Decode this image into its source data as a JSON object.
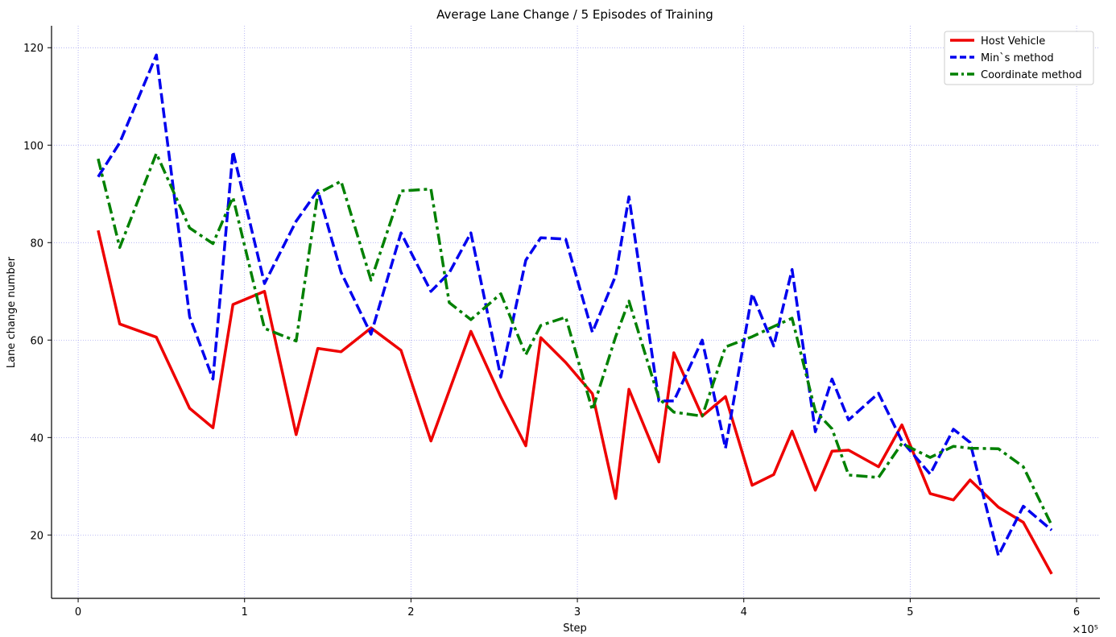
{
  "chart_data": {
    "type": "line",
    "title": "Average Lane Change / 5 Episodes of Training",
    "xlabel": "Step",
    "ylabel": "Lane change number",
    "x_multiplier_label": "×10⁵",
    "xlim": [
      -0.16,
      6.14
    ],
    "ylim": [
      7,
      124.5
    ],
    "xticks": [
      0,
      1,
      2,
      3,
      4,
      5,
      6
    ],
    "xtick_labels": [
      "0",
      "1",
      "2",
      "3",
      "4",
      "5",
      "6"
    ],
    "yticks": [
      20,
      40,
      60,
      80,
      100,
      120
    ],
    "ytick_labels": [
      "20",
      "40",
      "60",
      "80",
      "100",
      "120"
    ],
    "grid": true,
    "legend_position": "top-right",
    "series": [
      {
        "name": "Host Vehicle",
        "color": "#ee0000",
        "dash": "solid",
        "points": [
          [
            0.12,
            82.5
          ],
          [
            0.25,
            63.3
          ],
          [
            0.47,
            60.6
          ],
          [
            0.67,
            46
          ],
          [
            0.81,
            42
          ],
          [
            0.93,
            67.3
          ],
          [
            1.12,
            70
          ],
          [
            1.31,
            40.6
          ],
          [
            1.44,
            58.3
          ],
          [
            1.58,
            57.6
          ],
          [
            1.76,
            62.5
          ],
          [
            1.94,
            57.9
          ],
          [
            2.12,
            39.3
          ],
          [
            2.36,
            61.8
          ],
          [
            2.54,
            48.3
          ],
          [
            2.69,
            38.3
          ],
          [
            2.78,
            60.5
          ],
          [
            2.93,
            55.4
          ],
          [
            3.09,
            49
          ],
          [
            3.23,
            27.5
          ],
          [
            3.31,
            49.9
          ],
          [
            3.49,
            35
          ],
          [
            3.58,
            57.4
          ],
          [
            3.75,
            44.4
          ],
          [
            3.89,
            48.4
          ],
          [
            4.05,
            30.2
          ],
          [
            4.18,
            32.4
          ],
          [
            4.29,
            41.3
          ],
          [
            4.43,
            29.2
          ],
          [
            4.53,
            37.2
          ],
          [
            4.63,
            37.4
          ],
          [
            4.81,
            34
          ],
          [
            4.95,
            42.6
          ],
          [
            5.12,
            28.5
          ],
          [
            5.26,
            27.2
          ],
          [
            5.36,
            31.3
          ],
          [
            5.53,
            25.7
          ],
          [
            5.68,
            22.6
          ],
          [
            5.85,
            12
          ]
        ]
      },
      {
        "name": "Min`s method",
        "color": "#0000ee",
        "dash": "dashed",
        "points": [
          [
            0.12,
            93.5
          ],
          [
            0.25,
            100.5
          ],
          [
            0.47,
            118.5
          ],
          [
            0.67,
            64.8
          ],
          [
            0.81,
            52
          ],
          [
            0.93,
            98.7
          ],
          [
            1.12,
            71.6
          ],
          [
            1.31,
            84.4
          ],
          [
            1.44,
            90.7
          ],
          [
            1.58,
            73.9
          ],
          [
            1.76,
            61.2
          ],
          [
            1.94,
            82
          ],
          [
            2.12,
            70
          ],
          [
            2.23,
            73.8
          ],
          [
            2.36,
            82
          ],
          [
            2.54,
            52.4
          ],
          [
            2.69,
            76.4
          ],
          [
            2.78,
            81
          ],
          [
            2.93,
            80.7
          ],
          [
            3.09,
            61.6
          ],
          [
            3.23,
            73.2
          ],
          [
            3.31,
            89.4
          ],
          [
            3.49,
            47.5
          ],
          [
            3.58,
            47.5
          ],
          [
            3.75,
            60
          ],
          [
            3.89,
            37.8
          ],
          [
            4.05,
            69.5
          ],
          [
            4.18,
            58.8
          ],
          [
            4.29,
            74.5
          ],
          [
            4.43,
            41.2
          ],
          [
            4.53,
            52
          ],
          [
            4.63,
            43.6
          ],
          [
            4.81,
            49.1
          ],
          [
            4.95,
            39.3
          ],
          [
            5.12,
            32.5
          ],
          [
            5.26,
            41.7
          ],
          [
            5.36,
            39
          ],
          [
            5.53,
            15.8
          ],
          [
            5.68,
            25.9
          ],
          [
            5.85,
            21
          ]
        ]
      },
      {
        "name": "Coordinate method",
        "color": "#008000",
        "dash": "dashdot",
        "points": [
          [
            0.12,
            97.2
          ],
          [
            0.25,
            79
          ],
          [
            0.47,
            98.3
          ],
          [
            0.67,
            83
          ],
          [
            0.81,
            79.8
          ],
          [
            0.93,
            89.3
          ],
          [
            1.12,
            62.4
          ],
          [
            1.31,
            59.8
          ],
          [
            1.44,
            90.1
          ],
          [
            1.58,
            92.6
          ],
          [
            1.76,
            72.3
          ],
          [
            1.94,
            90.6
          ],
          [
            2.12,
            91
          ],
          [
            2.23,
            67.7
          ],
          [
            2.36,
            64.2
          ],
          [
            2.54,
            69.5
          ],
          [
            2.69,
            57
          ],
          [
            2.78,
            63
          ],
          [
            2.93,
            64.7
          ],
          [
            3.09,
            45.6
          ],
          [
            3.23,
            60.7
          ],
          [
            3.31,
            68
          ],
          [
            3.49,
            48
          ],
          [
            3.58,
            45.2
          ],
          [
            3.75,
            44.4
          ],
          [
            3.89,
            58.6
          ],
          [
            4.05,
            60.7
          ],
          [
            4.18,
            62.8
          ],
          [
            4.29,
            64.5
          ],
          [
            4.43,
            45.4
          ],
          [
            4.53,
            41.8
          ],
          [
            4.63,
            32.3
          ],
          [
            4.81,
            31.8
          ],
          [
            4.95,
            38.8
          ],
          [
            5.12,
            35.9
          ],
          [
            5.26,
            38.2
          ],
          [
            5.36,
            37.8
          ],
          [
            5.53,
            37.7
          ],
          [
            5.68,
            34
          ],
          [
            5.85,
            22
          ]
        ]
      }
    ]
  }
}
